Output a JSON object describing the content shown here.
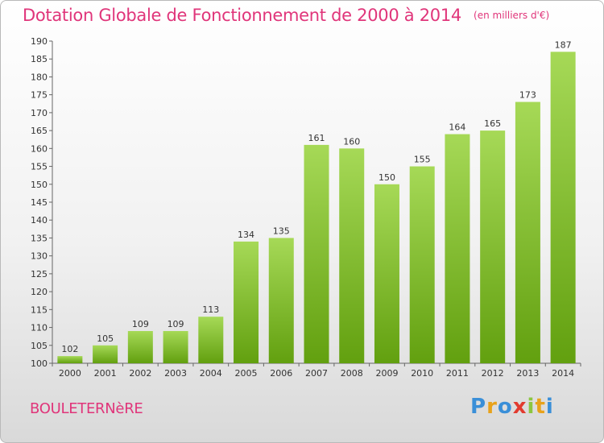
{
  "header": {
    "title": "Dotation Globale de Fonctionnement de 2000 à 2014",
    "unit": "(en milliers d'€)"
  },
  "footer": {
    "commune": "BOULETERNèRE",
    "logo_letters": [
      "P",
      "r",
      "o",
      "x",
      "i",
      "t",
      "i"
    ],
    "logo_colors": [
      "#3a8fd8",
      "#e8a21b",
      "#3a8fd8",
      "#e23b2f",
      "#8cc63f",
      "#e8a21b",
      "#3a8fd8"
    ]
  },
  "colors": {
    "bar_light": "#a6d957",
    "bar_dark": "#62a00f",
    "accent": "#e0357a"
  },
  "chart_data": {
    "type": "bar",
    "title": "Dotation Globale de Fonctionnement de 2000 à 2014",
    "subtitle": "(en milliers d'€)",
    "xlabel": "",
    "ylabel": "",
    "categories": [
      "2000",
      "2001",
      "2002",
      "2003",
      "2004",
      "2005",
      "2006",
      "2007",
      "2008",
      "2009",
      "2010",
      "2011",
      "2012",
      "2013",
      "2014"
    ],
    "values": [
      102,
      105,
      109,
      109,
      113,
      134,
      135,
      161,
      160,
      150,
      155,
      164,
      165,
      173,
      187
    ],
    "ylim": [
      100,
      190
    ],
    "yticks": [
      100,
      105,
      110,
      115,
      120,
      125,
      130,
      135,
      140,
      145,
      150,
      155,
      160,
      165,
      170,
      175,
      180,
      185,
      190
    ],
    "grid": false,
    "legend": "none"
  }
}
